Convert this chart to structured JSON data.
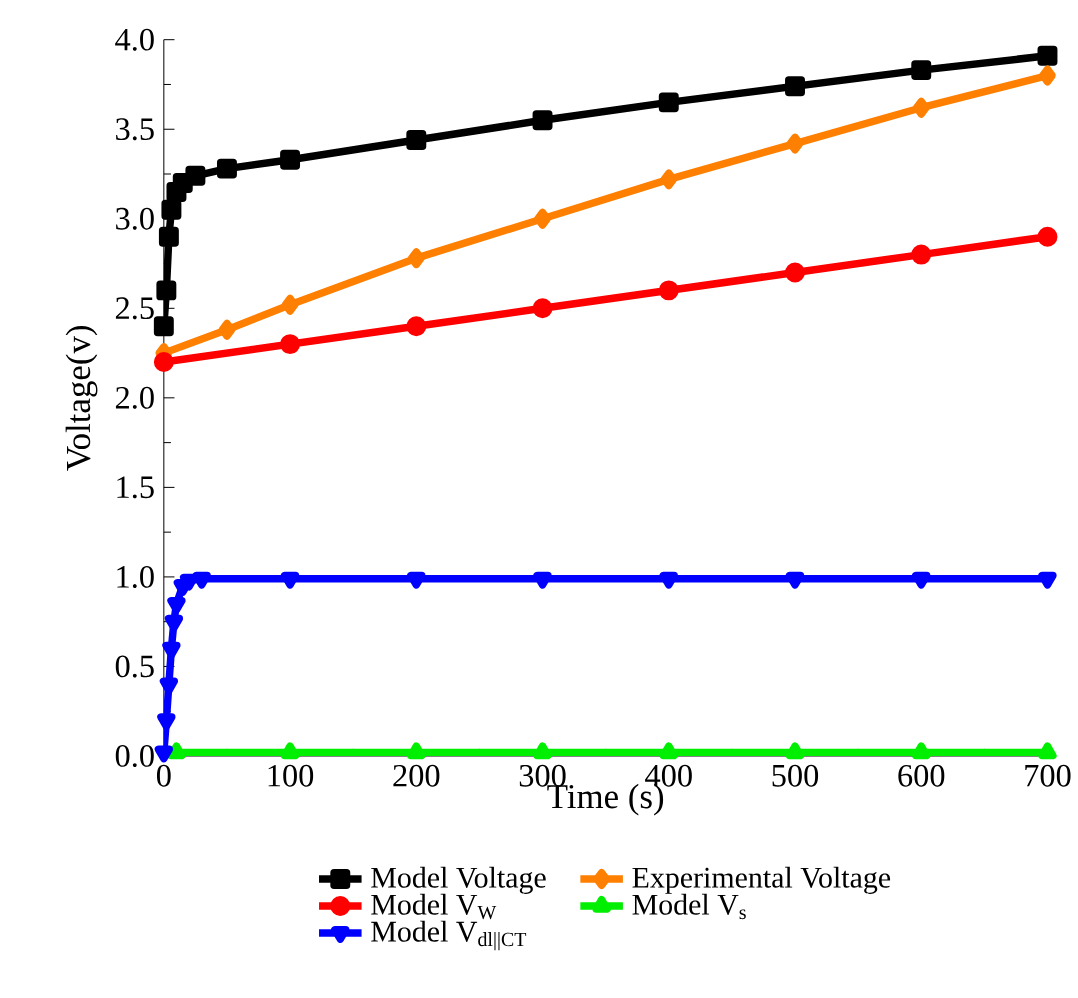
{
  "chart_data": {
    "type": "line",
    "xlabel": "Time (s)",
    "ylabel": "Voltage(v)",
    "xlim": [
      0,
      700
    ],
    "ylim": [
      0,
      4
    ],
    "xticks": [
      0,
      100,
      200,
      300,
      400,
      500,
      600,
      700
    ],
    "yticks": [
      {
        "value": 0,
        "label": "0.0"
      },
      0.5,
      {
        "value": 1,
        "label": "1.0"
      },
      1.5,
      {
        "value": 2,
        "label": "2.0"
      },
      2.5,
      {
        "value": 3,
        "label": "3.0"
      },
      3.5,
      {
        "value": 4,
        "label": "4.0"
      }
    ],
    "legend": "bottom",
    "grid": false,
    "series": [
      {
        "name": "Model Voltage",
        "color": "#000000",
        "marker": "square",
        "x": [
          0,
          2,
          4,
          6,
          10,
          15,
          25,
          50,
          100,
          200,
          300,
          400,
          500,
          600,
          700
        ],
        "values": [
          2.4,
          2.6,
          2.9,
          3.05,
          3.15,
          3.2,
          3.24,
          3.28,
          3.33,
          3.44,
          3.55,
          3.65,
          3.74,
          3.83,
          3.91
        ]
      },
      {
        "name": "Experimental Voltage",
        "color": "#ff7f00",
        "marker": "diamond",
        "x": [
          0,
          50,
          100,
          200,
          300,
          400,
          500,
          600,
          700
        ],
        "values": [
          2.25,
          2.38,
          2.52,
          2.78,
          3.0,
          3.22,
          3.42,
          3.62,
          3.8
        ]
      },
      {
        "name": "Model V$_{W}$",
        "color": "#ff0000",
        "marker": "circle",
        "x": [
          0,
          100,
          200,
          300,
          400,
          500,
          600,
          700
        ],
        "values": [
          2.2,
          2.3,
          2.4,
          2.5,
          2.6,
          2.7,
          2.8,
          2.9
        ]
      },
      {
        "name": "Model V$_{s}$",
        "color": "#00ee00",
        "marker": "triangle",
        "x": [
          10,
          100,
          200,
          300,
          400,
          500,
          600,
          700
        ],
        "values": [
          0.02,
          0.02,
          0.02,
          0.02,
          0.02,
          0.02,
          0.02,
          0.02
        ]
      },
      {
        "name": "Model V$_{dl||CT}$",
        "color": "#0000ff",
        "marker": "triangle down",
        "x": [
          0,
          2,
          4,
          6,
          8,
          10,
          15,
          20,
          30,
          100,
          200,
          300,
          400,
          500,
          600,
          700
        ],
        "values": [
          0.02,
          0.2,
          0.4,
          0.6,
          0.75,
          0.85,
          0.95,
          0.98,
          0.99,
          0.99,
          0.99,
          0.99,
          0.99,
          0.99,
          0.99,
          0.99
        ]
      }
    ]
  }
}
